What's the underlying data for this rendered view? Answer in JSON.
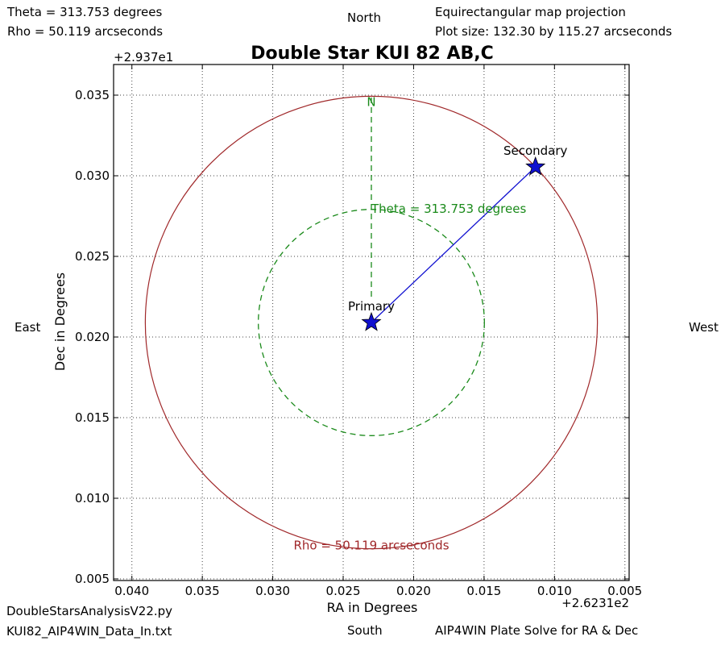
{
  "corner_text": {
    "top_left_1": "Theta = 313.753 degrees",
    "top_left_2": "Rho =  50.119 arcseconds",
    "top_right_1": "Equirectangular map projection",
    "top_right_2": "Plot size: 132.30 by 115.27 arcseconds",
    "bottom_left_1": "DoubleStarsAnalysisV22.py",
    "bottom_left_2": "KUI82_AIP4WIN_Data_In.txt",
    "bottom_right": "AIP4WIN Plate Solve for RA & Dec"
  },
  "compass": {
    "north": "North",
    "south": "South",
    "east": "East",
    "west": "West"
  },
  "colors": {
    "rho": "#a0282a",
    "theta": "#1a8a1a",
    "star": "#1010d0",
    "grid": "#444444"
  },
  "chart_data": {
    "type": "scatter",
    "title": "Double Star KUI 82 AB,C",
    "xlabel": "RA in Degrees",
    "ylabel": "Dec in Degrees",
    "x_offset_label": "+2.6231e2",
    "y_offset_label": "+2.937e1",
    "xlim": [
      0.0413,
      0.0047
    ],
    "ylim": [
      0.0049,
      0.0369
    ],
    "x_ticks": [
      0.04,
      0.035,
      0.03,
      0.025,
      0.02,
      0.015,
      0.01,
      0.005
    ],
    "x_tick_labels": [
      "0.040",
      "0.035",
      "0.030",
      "0.025",
      "0.020",
      "0.015",
      "0.010",
      "0.005"
    ],
    "y_ticks": [
      0.005,
      0.01,
      0.015,
      0.02,
      0.025,
      0.03,
      0.035
    ],
    "y_tick_labels": [
      "0.005",
      "0.010",
      "0.015",
      "0.020",
      "0.025",
      "0.030",
      "0.035"
    ],
    "grid": true,
    "stars": [
      {
        "label": "Primary",
        "x": 0.023,
        "y": 0.0209
      },
      {
        "label": "Secondary",
        "x": 0.01135,
        "y": 0.03055
      }
    ],
    "rho_label": "Rho = 50.119 arcseconds",
    "theta_label": "Theta = 313.753 degrees",
    "north_marker": "N",
    "rho_arcsec": 50.119,
    "theta_deg": 313.753
  }
}
